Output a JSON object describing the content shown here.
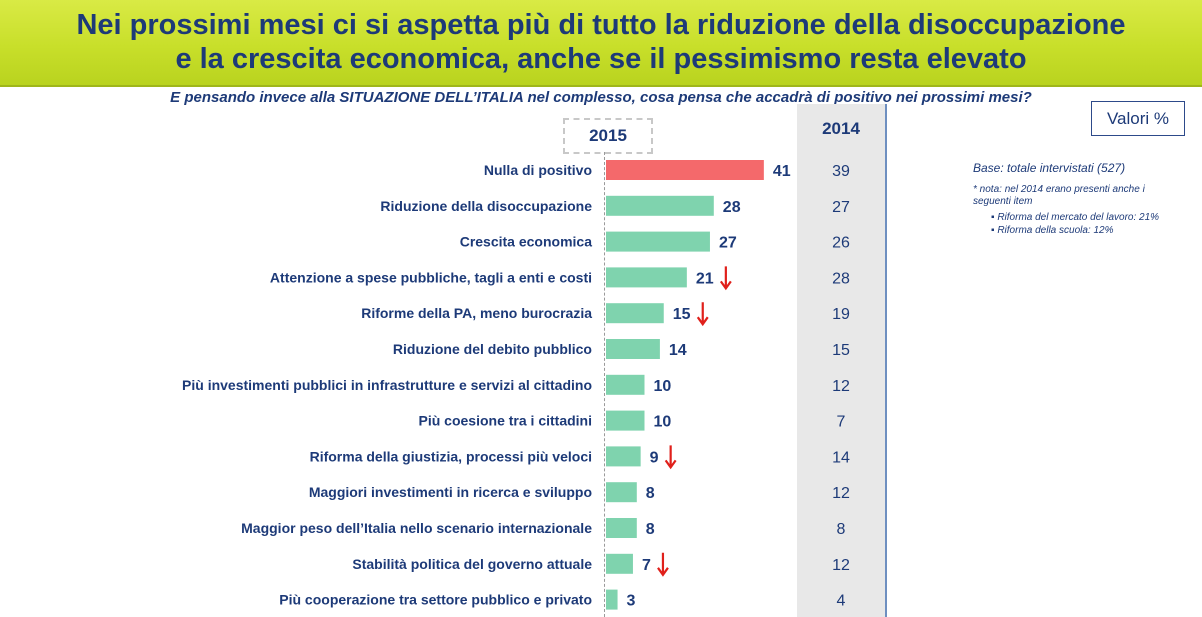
{
  "title_line1": "Nei prossimi mesi ci si aspetta più di tutto la riduzione della disoccupazione",
  "title_line2": "e la crescita economica, anche se il pessimismo resta elevato",
  "question": "E pensando invece alla SITUAZIONE DELL’ITALIA nel complesso, cosa pensa che accadrà di positivo nei prossimi mesi?",
  "valori_label": "Valori %",
  "base_note": "Base: totale intervistati (527)",
  "footnote": "* nota: nel 2014 erano presenti anche i seguenti item",
  "footnote_items": [
    "Riforma del mercato del lavoro: 21%",
    "Riforma della scuola: 12%"
  ],
  "colors": {
    "highlight_bar": "#f4696b",
    "bar": "#7fd3ae",
    "text": "#1d3a78",
    "down_arrow": "#e0201b"
  },
  "chart_data": {
    "type": "bar",
    "orientation": "horizontal",
    "categories": [
      "Nulla di positivo",
      "Riduzione della disoccupazione",
      "Crescita economica",
      "Attenzione a spese pubbliche, tagli a enti e costi",
      "Riforme della PA, meno burocrazia",
      "Riduzione del debito pubblico",
      "Più investimenti pubblici in infrastrutture e servizi al cittadino",
      "Più coesione tra i cittadini",
      "Riforma della giustizia, processi più veloci",
      "Maggiori investimenti in ricerca e sviluppo",
      "Maggior peso dell’Italia nello scenario internazionale",
      "Stabilità politica del governo attuale",
      "Più cooperazione tra settore pubblico e privato"
    ],
    "series": [
      {
        "name": "2015",
        "values": [
          41,
          28,
          27,
          21,
          15,
          14,
          10,
          10,
          9,
          8,
          8,
          7,
          3
        ]
      },
      {
        "name": "2014",
        "values": [
          39,
          27,
          26,
          28,
          19,
          15,
          12,
          7,
          14,
          12,
          8,
          12,
          4
        ]
      }
    ],
    "decrease_arrows": [
      false,
      false,
      false,
      true,
      true,
      false,
      false,
      false,
      true,
      false,
      false,
      true,
      false
    ],
    "highlight_index": 0
  }
}
